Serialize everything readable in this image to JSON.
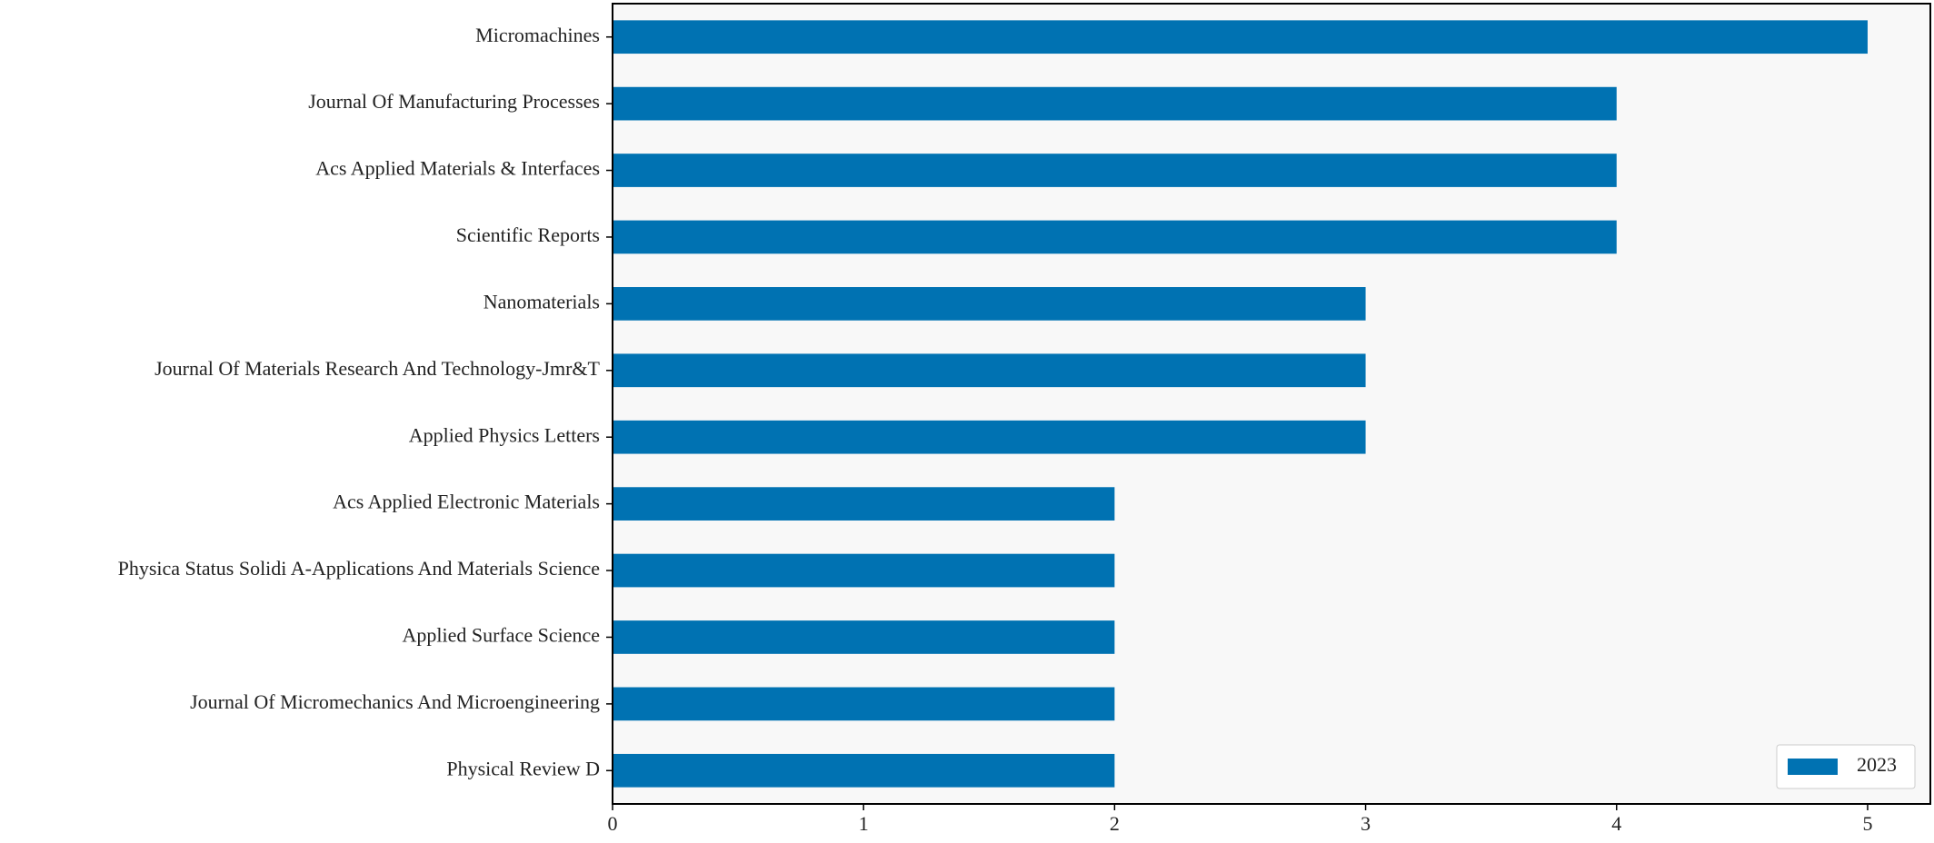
{
  "chart_data": {
    "type": "barh",
    "categories": [
      "Micromachines",
      "Journal Of Manufacturing Processes",
      "Acs Applied Materials & Interfaces",
      "Scientific Reports",
      "Nanomaterials",
      "Journal Of Materials Research And Technology-Jmr&T",
      "Applied Physics Letters",
      "Acs Applied Electronic Materials",
      "Physica Status Solidi A-Applications And Materials Science",
      "Applied Surface Science",
      "Journal Of Micromechanics And Microengineering",
      "Physical Review D"
    ],
    "series": [
      {
        "name": "2023",
        "color": "#0072b2",
        "values": [
          5,
          4,
          4,
          4,
          3,
          3,
          3,
          2,
          2,
          2,
          2,
          2
        ]
      }
    ],
    "xlim": [
      0,
      5.25
    ],
    "xticks": [
      0,
      1,
      2,
      3,
      4,
      5
    ],
    "legend": "lower right"
  }
}
